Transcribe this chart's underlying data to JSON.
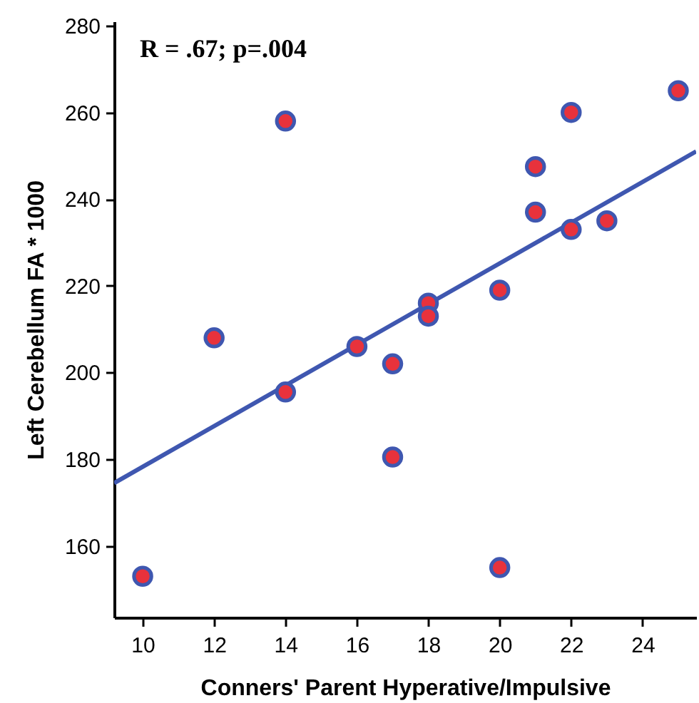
{
  "chart_data": {
    "type": "scatter",
    "xlabel": "Conners' Parent Hyperative/Impulsive",
    "ylabel": "Left Cerebellum FA * 1000",
    "annotations": [
      "R = .67; p=.004"
    ],
    "series": [
      {
        "color": "#e8323c",
        "x": [
          10,
          12,
          14,
          14,
          16,
          17,
          17,
          18,
          18,
          20,
          20,
          21,
          21,
          22,
          22,
          23,
          25
        ],
        "values": [
          153,
          208,
          258,
          195.5,
          206,
          202,
          180.5,
          216,
          213,
          219,
          155,
          247.5,
          237,
          260,
          233,
          235,
          265
        ]
      },
      {
        "type": "line",
        "color": "#3f57b0",
        "x": [
          9.2,
          25.5
        ],
        "values": [
          174.5,
          251
        ]
      }
    ],
    "xlim": [
      9.2,
      25.5
    ],
    "ylim": [
      143.5,
      281
    ],
    "xticks": [
      10,
      12,
      14,
      16,
      18,
      20,
      22,
      24
    ],
    "yticks": [
      160,
      180,
      200,
      220,
      240,
      260,
      280
    ],
    "grid": false
  }
}
